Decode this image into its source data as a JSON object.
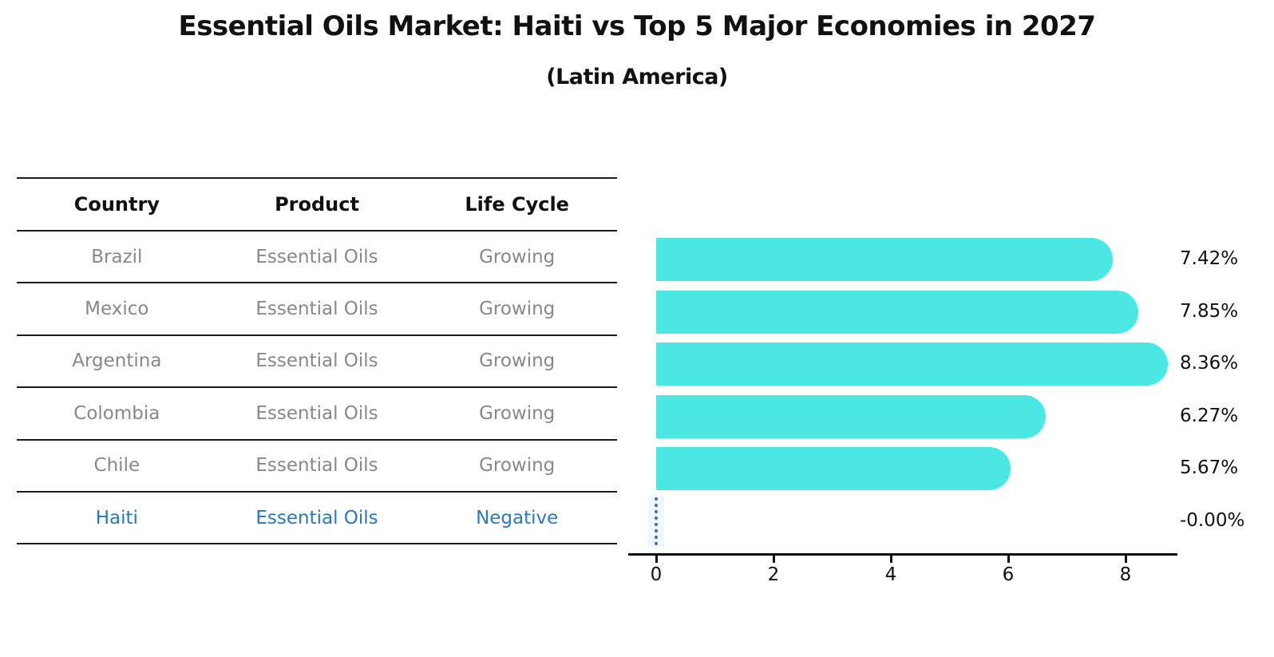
{
  "title": "Essential Oils Market: Haiti vs Top 5 Major Economies in 2027",
  "subtitle": "(Latin America)",
  "table": {
    "headers": [
      "Country",
      "Product",
      "Life Cycle"
    ],
    "rows": [
      {
        "country": "Brazil",
        "product": "Essential Oils",
        "life_cycle": "Growing",
        "highlight": false
      },
      {
        "country": "Mexico",
        "product": "Essential Oils",
        "life_cycle": "Growing",
        "highlight": false
      },
      {
        "country": "Argentina",
        "product": "Essential Oils",
        "life_cycle": "Growing",
        "highlight": false
      },
      {
        "country": "Colombia",
        "product": "Essential Oils",
        "life_cycle": "Growing",
        "highlight": false
      },
      {
        "country": "Chile",
        "product": "Essential Oils",
        "life_cycle": "Growing",
        "highlight": false
      },
      {
        "country": "Haiti",
        "product": "Essential Oils",
        "life_cycle": "Negative",
        "highlight": true
      }
    ]
  },
  "chart_data": {
    "type": "bar",
    "orientation": "horizontal",
    "title": "Essential Oils Market: Haiti vs Top 5 Major Economies in 2027",
    "subtitle": "(Latin America)",
    "categories": [
      "Brazil",
      "Mexico",
      "Argentina",
      "Colombia",
      "Chile",
      "Haiti"
    ],
    "values": [
      7.42,
      7.85,
      8.36,
      6.27,
      5.67,
      0
    ],
    "value_labels": [
      "7.42%",
      "7.85%",
      "8.36%",
      "6.27%",
      "5.67%",
      "-0.00%"
    ],
    "x_ticks": [
      0,
      2,
      4,
      6,
      8
    ],
    "xlim": [
      0,
      8.9
    ],
    "grid": false,
    "legend": "none",
    "bar_color": "#4be8e3",
    "highlight_line_color": "#2f6fb5",
    "highlight_text_color": "#2878c8"
  }
}
